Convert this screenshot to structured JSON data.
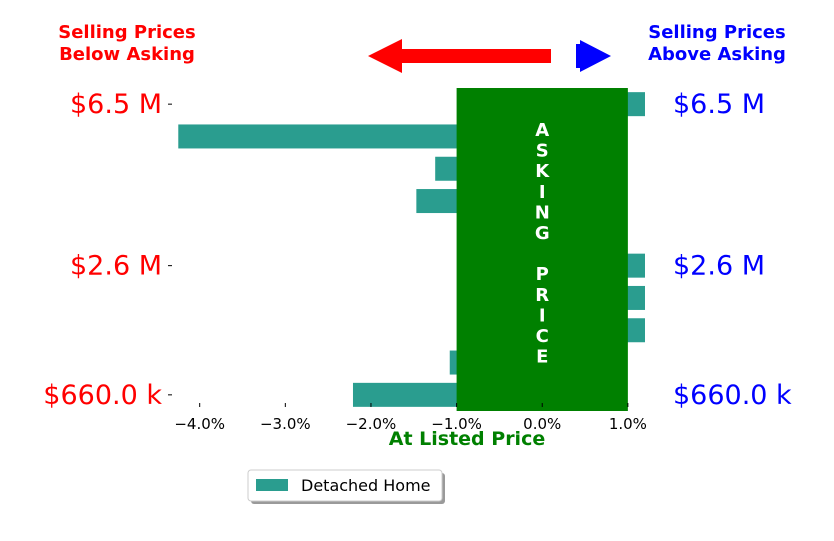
{
  "chart_data": {
    "type": "bar",
    "orientation": "horizontal",
    "header": {
      "left_line1": "Selling Prices",
      "left_line2": "Below Asking",
      "right_line1": "Selling Prices",
      "right_line2": "Above Asking",
      "left_color": "#ff0000",
      "right_color": "#0000ff"
    },
    "asking_band": {
      "text": "ASKING PRICE",
      "range": [
        -1.0,
        1.0
      ],
      "color": "#008000"
    },
    "xlabel": "At Listed Price",
    "xlabel_color": "#008000",
    "xlim": [
      -4.3,
      1.2
    ],
    "xticks": [
      -4.0,
      -3.0,
      -2.0,
      -1.0,
      0.0,
      1.0
    ],
    "xtick_labels": [
      "−4.0%",
      "−3.0%",
      "−2.0%",
      "−1.0%",
      "0.0%",
      "1.0%"
    ],
    "y_labels": [
      {
        "text": "$6.5 M",
        "row": 0
      },
      {
        "text": "$2.6 M",
        "row": 5
      },
      {
        "text": "$660.0 k",
        "row": 9
      }
    ],
    "series": [
      {
        "name": "Detached Home",
        "color": "#2a9d8f",
        "values": [
          1.2,
          -4.25,
          -1.25,
          -1.47,
          null,
          1.2,
          1.2,
          1.2,
          -1.08,
          -2.21
        ]
      }
    ],
    "legend": {
      "position": "bottom-center",
      "labels": [
        "Detached Home"
      ]
    },
    "grid": false
  }
}
